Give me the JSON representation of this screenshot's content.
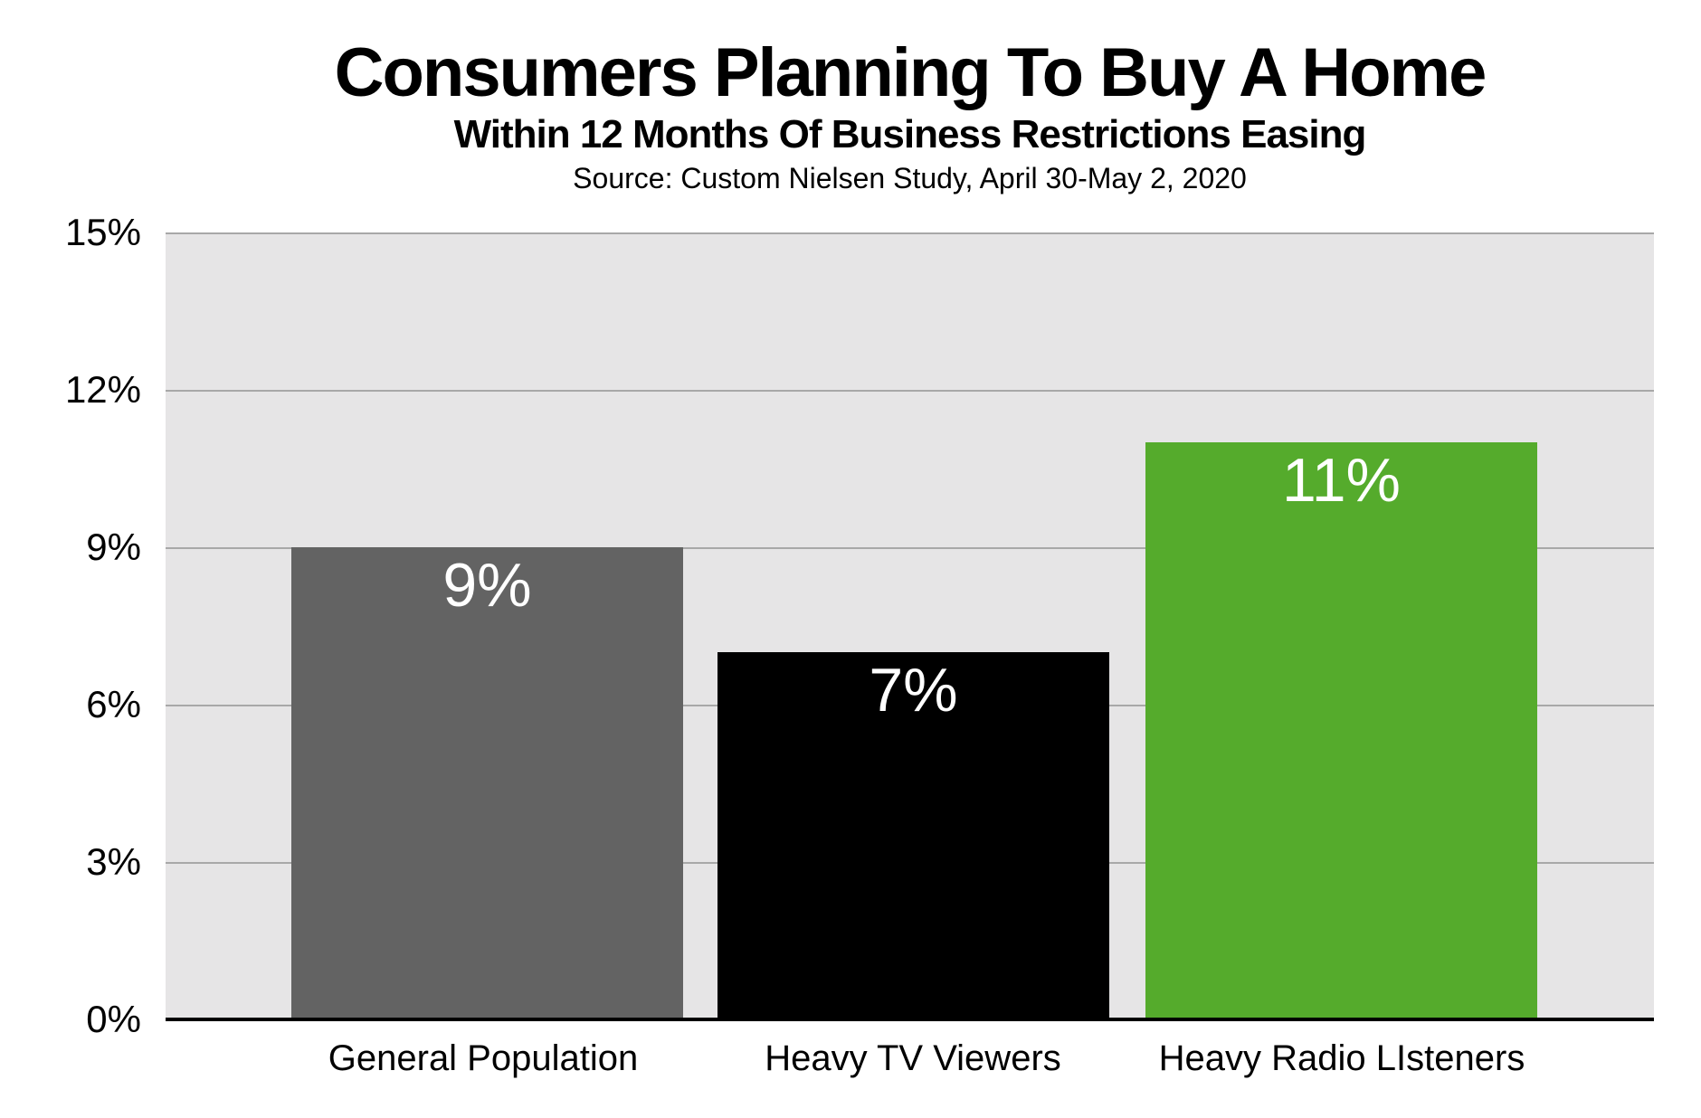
{
  "chart_data": {
    "type": "bar",
    "title": "Consumers Planning To Buy A Home",
    "subtitle": "Within 12 Months Of Business Restrictions Easing",
    "source": "Source: Custom Nielsen Study, April 30-May 2, 2020",
    "categories": [
      "General Population",
      "Heavy TV Viewers",
      "Heavy Radio LIsteners"
    ],
    "values": [
      9,
      7,
      11
    ],
    "value_labels": [
      "9%",
      "7%",
      "11%"
    ],
    "bar_colors": [
      "#636363",
      "#000000",
      "#55ab2c"
    ],
    "ylim": [
      0,
      15
    ],
    "yticks": [
      {
        "value": 15,
        "label": "15%"
      },
      {
        "value": 12,
        "label": "12%"
      },
      {
        "value": 9,
        "label": "9%"
      },
      {
        "value": 6,
        "label": "6%"
      },
      {
        "value": 3,
        "label": "3%"
      },
      {
        "value": 0,
        "label": "0%"
      }
    ],
    "grid": "horizontal",
    "legend": "none",
    "plot_background": "#e6e5e6",
    "gridline_color": "#a8a8a8",
    "axis_line_color": "#000000",
    "value_label_color": "#ffffff"
  }
}
